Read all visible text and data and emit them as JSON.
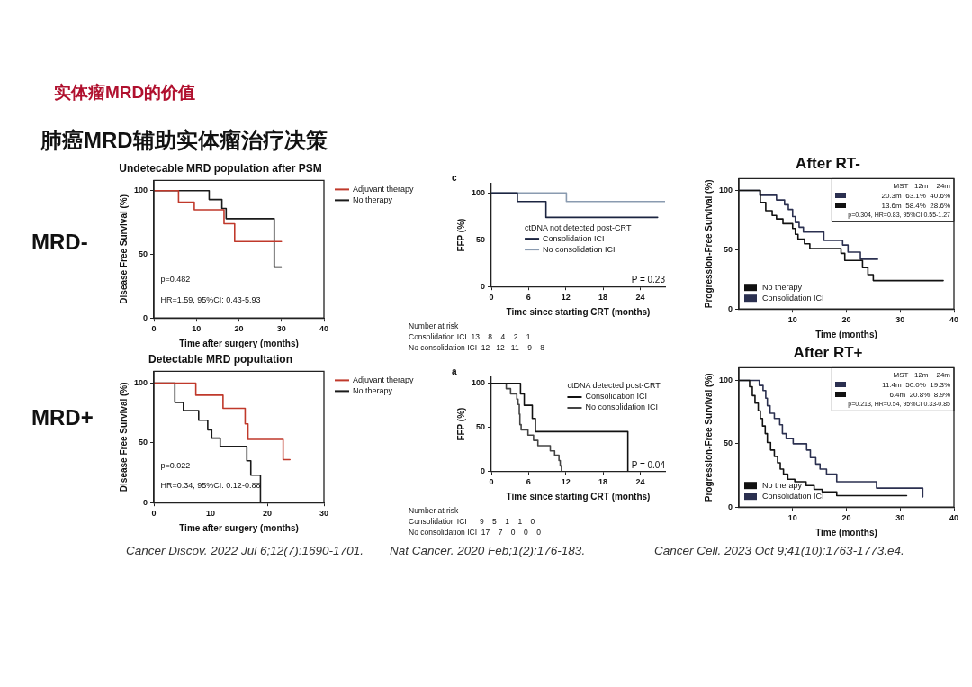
{
  "chart_data": [
    {
      "type": "other",
      "title": "实体瘤MRD的价值",
      "subtitle": "肺癌MRD辅助实体瘤治疗决策",
      "annotations": [
        "MRD-",
        "MRD+",
        "Cancer Discov. 2022 Jul 6;12(7):1690-1701.",
        "Nat Cancer. 2020 Feb;1(2):176-183.",
        "Cancer Cell. 2023 Oct 9;41(10):1763-1773.e4."
      ]
    },
    {
      "type": "step",
      "title": "Undetecable MRD population after PSM",
      "xlabel": "Time after surgery (months)",
      "ylabel": "Disease Free Survival (%)",
      "xlim": [
        0,
        40
      ],
      "xticks": [
        0,
        10,
        20,
        30,
        40
      ],
      "ylim": [
        0,
        108
      ],
      "yticks": [
        0,
        50,
        100
      ],
      "legend": "right",
      "annotations": [
        "p=0.482",
        "HR=1.59, 95%CI: 0.43-5.93"
      ],
      "series": [
        {
          "name": "Adjuvant therapy",
          "color": "#c0392b",
          "x": [
            0,
            5.8,
            9.5,
            16.5,
            19,
            30
          ],
          "values": [
            100,
            91,
            85,
            74,
            60,
            60
          ]
        },
        {
          "name": "No therapy",
          "color": "#1a1a1a",
          "x": [
            0,
            13,
            16,
            17,
            28.3,
            30
          ],
          "values": [
            100,
            93,
            86,
            78,
            40,
            40
          ]
        }
      ]
    },
    {
      "type": "step",
      "xlabel": "Time since starting CRT (months)",
      "ylabel": "FFP (%)",
      "xlim": [
        0,
        28
      ],
      "xticks": [
        0,
        6,
        12,
        18,
        24
      ],
      "ylim": [
        0,
        110
      ],
      "yticks": [
        0,
        50,
        100
      ],
      "legend": "center",
      "legend_title": "ctDNA not detected post-CRT",
      "annotations": [
        "c",
        "P = 0.23",
        "Number at risk",
        "Consolidation ICI  13    8    4    2    1",
        "No consolidation ICI  12   12   11    9    8"
      ],
      "series": [
        {
          "name": "Consolidation ICI",
          "color": "#1c2541",
          "x": [
            0,
            4.2,
            8.8,
            26.8
          ],
          "values": [
            100,
            91,
            74,
            74
          ]
        },
        {
          "name": "No consolidation ICI",
          "color": "#8a9bb0",
          "x": [
            0,
            12.1,
            28
          ],
          "values": [
            100,
            91,
            91
          ]
        }
      ]
    },
    {
      "type": "step",
      "title": "After RT-",
      "xlabel": "Time (months)",
      "ylabel": "Progression-Free Survival (%)",
      "xlim": [
        0,
        40
      ],
      "xticks": [
        10,
        20,
        30,
        40
      ],
      "ylim": [
        0,
        110
      ],
      "yticks": [
        0,
        50,
        100
      ],
      "legend": "bottom left",
      "annotations": [
        "MST   12m    24m",
        "20.3m  63.1%  40.6%",
        "13.6m  58.4%  28.6%",
        "p=0.304, HR=0.83, 95%CI 0.55-1.27"
      ],
      "series": [
        {
          "name": "No therapy",
          "color": "#111111",
          "x": [
            0,
            4,
            5,
            6.2,
            7,
            8.2,
            10,
            10.5,
            11,
            12.2,
            13.2,
            19,
            19.7,
            23,
            24,
            25,
            38
          ],
          "values": [
            100,
            90,
            83,
            79,
            76,
            72,
            68,
            63,
            59,
            55,
            51,
            47,
            41,
            35,
            29,
            24,
            24
          ]
        },
        {
          "name": "Consolidation ICI",
          "color": "#2b3050",
          "x": [
            0,
            3.9,
            7,
            8.5,
            9.2,
            10,
            10.5,
            11.2,
            12,
            15.8,
            19.3,
            20.3,
            22.6,
            25.8
          ],
          "values": [
            100,
            96,
            92,
            88,
            84,
            78,
            73,
            69,
            65,
            58,
            54,
            48,
            42,
            42
          ]
        }
      ]
    },
    {
      "type": "step",
      "title": "Detectable MRD popultation",
      "xlabel": "Time after surgery (months)",
      "ylabel": "Disease Free Survival (%)",
      "xlim": [
        0,
        30
      ],
      "xticks": [
        0,
        10,
        20,
        30
      ],
      "ylim": [
        0,
        110
      ],
      "yticks": [
        0,
        50,
        100
      ],
      "legend": "right",
      "annotations": [
        "p=0.022",
        "HR=0.34, 95%CI: 0.12-0.88"
      ],
      "series": [
        {
          "name": "Adjuvant therapy",
          "color": "#c0392b",
          "x": [
            0,
            7.4,
            12.2,
            16.1,
            16.6,
            22.8,
            24
          ],
          "values": [
            100,
            90,
            79,
            66,
            53,
            36,
            36
          ]
        },
        {
          "name": "No therapy",
          "color": "#1a1a1a",
          "x": [
            0,
            3.7,
            5.2,
            7.9,
            9.5,
            10.2,
            11.7,
            16.4,
            17.1,
            18.8
          ],
          "values": [
            100,
            84,
            77,
            69,
            61,
            54,
            47,
            35,
            23,
            0
          ]
        }
      ]
    },
    {
      "type": "step",
      "xlabel": "Time since starting CRT (months)",
      "ylabel": "FFP (%)",
      "xlim": [
        0,
        28
      ],
      "xticks": [
        0,
        6,
        12,
        18,
        24
      ],
      "ylim": [
        0,
        107
      ],
      "yticks": [
        0,
        50,
        100
      ],
      "legend": "top right",
      "legend_title": "ctDNA detected post-CRT",
      "annotations": [
        "a",
        "P = 0.04",
        "Number at risk",
        "Consolidation ICI      9    5    1    1    0",
        "No consolidation ICI  17    7    0    0    0"
      ],
      "series": [
        {
          "name": "Consolidation ICI",
          "color": "#111111",
          "x": [
            0,
            4.7,
            5.3,
            6.6,
            7.1,
            22
          ],
          "values": [
            100,
            88,
            75,
            60,
            45,
            0
          ]
        },
        {
          "name": "No consolidation ICI",
          "color": "#444444",
          "x": [
            0,
            2.4,
            3.1,
            4.1,
            4.3,
            4.5,
            4.6,
            4.8,
            5.9,
            6.8,
            7.5,
            9.5,
            10.2,
            10.9,
            11.1,
            11.3
          ],
          "values": [
            100,
            94,
            88,
            82,
            76,
            65,
            53,
            47,
            41,
            35,
            29,
            23,
            18,
            12,
            6,
            0
          ]
        }
      ]
    },
    {
      "type": "step",
      "title": "After RT+",
      "xlabel": "Time (months)",
      "ylabel": "Progression-Free Survival (%)",
      "xlim": [
        0,
        40
      ],
      "xticks": [
        10,
        20,
        30,
        40
      ],
      "ylim": [
        0,
        110
      ],
      "yticks": [
        0,
        50,
        100
      ],
      "legend": "bottom left",
      "annotations": [
        "MST   12m    24m",
        "11.4m  50.0%  19.3%",
        "6.4m  20.8%  8.9%",
        "p=0.213, HR=0.54, 95%CI 0.33-0.85"
      ],
      "series": [
        {
          "name": "No therapy",
          "color": "#111111",
          "x": [
            0,
            2,
            2.5,
            3,
            3.6,
            4,
            4.4,
            4.9,
            5.3,
            5.9,
            6.6,
            7.2,
            7.7,
            8.3,
            9.1,
            10.4,
            12.5,
            14,
            15.5,
            18.2,
            31.2
          ],
          "values": [
            100,
            95,
            88,
            82,
            76,
            70,
            64,
            58,
            51,
            45,
            40,
            35,
            30,
            26,
            22,
            20,
            17,
            14,
            12,
            9,
            9
          ]
        },
        {
          "name": "Consolidation ICI",
          "color": "#2b3050",
          "x": [
            0,
            3.8,
            4.5,
            5,
            5.3,
            5.8,
            6.6,
            7.6,
            8.1,
            8.8,
            10.1,
            12.6,
            13.3,
            14.3,
            15.1,
            16.3,
            18.2,
            25.6,
            34.2
          ],
          "values": [
            100,
            96,
            92,
            86,
            80,
            74,
            70,
            65,
            58,
            54,
            50,
            45,
            39,
            34,
            30,
            26,
            20,
            15,
            8
          ]
        }
      ]
    }
  ]
}
